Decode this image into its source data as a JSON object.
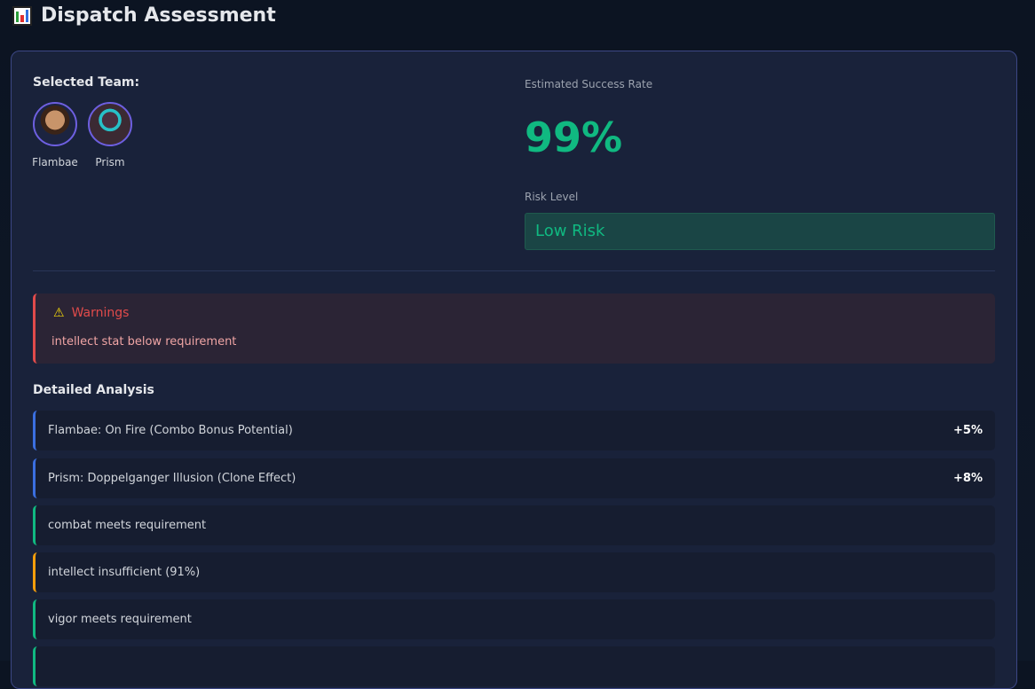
{
  "header": {
    "title": "Dispatch Assessment",
    "icon": "bar-chart-icon"
  },
  "team": {
    "label": "Selected Team:",
    "members": [
      {
        "name": "Flambae"
      },
      {
        "name": "Prism"
      }
    ]
  },
  "success": {
    "label": "Estimated Success Rate",
    "value": "99%",
    "color": "#10b981"
  },
  "risk": {
    "label": "Risk Level",
    "value": "Low Risk"
  },
  "warnings": {
    "title": "Warnings",
    "icon": "warning-icon",
    "items": [
      "intellect stat below requirement"
    ]
  },
  "analysis": {
    "title": "Detailed Analysis",
    "items": [
      {
        "text": "Flambae: On Fire (Combo Bonus Potential)",
        "bonus": "+5%",
        "color": "#3b6fe0"
      },
      {
        "text": "Prism: Doppelganger Illusion (Clone Effect)",
        "bonus": "+8%",
        "color": "#3b6fe0"
      },
      {
        "text": "combat meets requirement",
        "bonus": "",
        "color": "#10b981"
      },
      {
        "text": "intellect insufficient (91%)",
        "bonus": "",
        "color": "#f59e0b"
      },
      {
        "text": "vigor meets requirement",
        "bonus": "",
        "color": "#10b981"
      },
      {
        "text": "",
        "bonus": "",
        "color": "#10b981"
      }
    ]
  }
}
